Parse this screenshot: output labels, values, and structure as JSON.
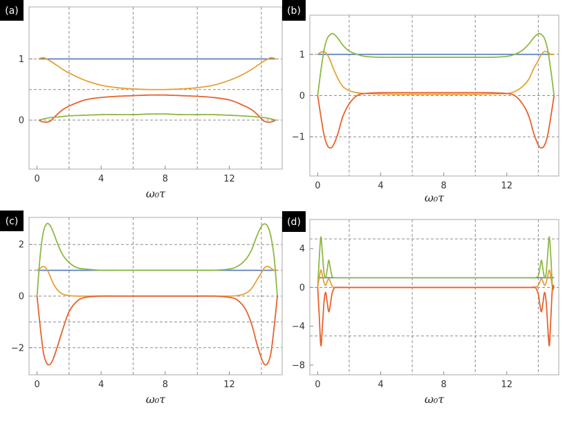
{
  "colors": {
    "blue": "#5b7fc0",
    "orange": "#e6a035",
    "green": "#8db843",
    "red": "#e8612c"
  },
  "chart_data": [
    {
      "type": "line",
      "panel_label": "(a)",
      "xlabel": "ω₀τ",
      "xlim": [
        -0.5,
        15.3
      ],
      "ylim": [
        -0.8,
        1.85
      ],
      "xticks": [
        0,
        4,
        8,
        12
      ],
      "yticks": [
        0,
        1
      ],
      "ytick_labels": [
        "0",
        "1"
      ],
      "grid_x": [
        2,
        6,
        10,
        14
      ],
      "grid_y": [
        0,
        0.5,
        1
      ],
      "x": [
        0.1,
        0.4,
        0.8,
        1.2,
        1.6,
        2,
        3,
        4,
        5,
        6,
        7,
        7.5,
        8,
        9,
        10,
        11,
        12,
        12.8,
        13.4,
        13.8,
        14.2,
        14.6,
        14.9
      ],
      "series": [
        {
          "color": "blue",
          "values": [
            1,
            1,
            1,
            1,
            1,
            1,
            1,
            1,
            1,
            1,
            1,
            1,
            1,
            1,
            1,
            1,
            1,
            1,
            1,
            1,
            1,
            1,
            1
          ]
        },
        {
          "color": "orange",
          "values": [
            1.0,
            1.02,
            0.97,
            0.9,
            0.83,
            0.77,
            0.65,
            0.57,
            0.53,
            0.51,
            0.5,
            0.5,
            0.5,
            0.51,
            0.53,
            0.57,
            0.65,
            0.74,
            0.83,
            0.9,
            0.97,
            1.02,
            1.0
          ]
        },
        {
          "color": "red",
          "values": [
            0.0,
            -0.03,
            -0.02,
            0.08,
            0.17,
            0.23,
            0.33,
            0.37,
            0.39,
            0.4,
            0.41,
            0.41,
            0.41,
            0.4,
            0.39,
            0.37,
            0.33,
            0.25,
            0.17,
            0.08,
            -0.02,
            -0.03,
            0.0
          ]
        },
        {
          "color": "green",
          "values": [
            0.0,
            0.02,
            0.04,
            0.05,
            0.06,
            0.07,
            0.08,
            0.09,
            0.09,
            0.09,
            0.1,
            0.1,
            0.1,
            0.09,
            0.09,
            0.09,
            0.08,
            0.07,
            0.06,
            0.05,
            0.04,
            0.02,
            0.0
          ]
        }
      ]
    },
    {
      "type": "line",
      "panel_label": "(b)",
      "xlabel": "ω₀τ",
      "xlim": [
        -0.5,
        15.3
      ],
      "ylim": [
        -1.95,
        1.95
      ],
      "xticks": [
        0,
        4,
        8,
        12
      ],
      "yticks": [
        -1,
        0,
        1
      ],
      "ytick_labels": [
        "−1",
        "0",
        "1"
      ],
      "grid_x": [
        2,
        6,
        10,
        14
      ],
      "grid_y": [
        -1,
        0,
        1
      ],
      "x": [
        0.0,
        0.2,
        0.4,
        0.6,
        0.8,
        1.0,
        1.3,
        1.6,
        2.0,
        2.5,
        3,
        4,
        5,
        6,
        7,
        7.5,
        8,
        9,
        10,
        11,
        12,
        12.5,
        13.0,
        13.4,
        13.7,
        14.0,
        14.2,
        14.4,
        14.6,
        14.8,
        15.0
      ],
      "series": [
        {
          "color": "blue",
          "values": [
            1,
            1,
            1,
            1,
            1,
            1,
            1,
            1,
            1,
            1,
            1,
            1,
            1,
            1,
            1,
            1,
            1,
            1,
            1,
            1,
            1,
            1,
            1,
            1,
            1,
            1,
            1,
            1,
            1,
            1,
            1
          ]
        },
        {
          "color": "orange",
          "values": [
            1.0,
            1.05,
            1.07,
            1.0,
            0.85,
            0.65,
            0.4,
            0.22,
            0.12,
            0.07,
            0.05,
            0.04,
            0.03,
            0.03,
            0.03,
            0.03,
            0.03,
            0.03,
            0.03,
            0.04,
            0.05,
            0.1,
            0.22,
            0.4,
            0.65,
            0.85,
            1.0,
            1.07,
            1.05,
            1.0,
            1.0
          ]
        },
        {
          "color": "green",
          "values": [
            0.0,
            0.6,
            1.1,
            1.38,
            1.48,
            1.5,
            1.38,
            1.22,
            1.08,
            1.0,
            0.95,
            0.93,
            0.93,
            0.93,
            0.93,
            0.93,
            0.93,
            0.93,
            0.93,
            0.93,
            0.95,
            1.0,
            1.1,
            1.25,
            1.4,
            1.5,
            1.48,
            1.38,
            1.1,
            0.6,
            0.0
          ]
        },
        {
          "color": "red",
          "values": [
            0.0,
            -0.5,
            -0.95,
            -1.2,
            -1.27,
            -1.2,
            -0.9,
            -0.5,
            -0.2,
            0.0,
            0.05,
            0.07,
            0.07,
            0.07,
            0.07,
            0.07,
            0.07,
            0.07,
            0.07,
            0.07,
            0.05,
            0.0,
            -0.2,
            -0.5,
            -0.9,
            -1.2,
            -1.27,
            -1.2,
            -0.95,
            -0.5,
            0.0
          ]
        }
      ]
    },
    {
      "type": "line",
      "panel_label": "(c)",
      "xlabel": "ω₀τ",
      "xlim": [
        -0.5,
        15.3
      ],
      "ylim": [
        -3.05,
        3.05
      ],
      "xticks": [
        0,
        4,
        8,
        12
      ],
      "yticks": [
        -2,
        0,
        2
      ],
      "ytick_labels": [
        "−2",
        "0",
        "2"
      ],
      "grid_x": [
        2,
        6,
        10,
        14
      ],
      "grid_y": [
        -2,
        -1,
        0,
        1,
        2
      ],
      "x": [
        0.0,
        0.2,
        0.4,
        0.6,
        0.8,
        1.0,
        1.3,
        1.6,
        2.0,
        2.5,
        3,
        4,
        5,
        6,
        7,
        7.5,
        8,
        9,
        10,
        11,
        12,
        12.5,
        13.0,
        13.4,
        13.7,
        14.0,
        14.2,
        14.4,
        14.6,
        14.8,
        15.0
      ],
      "series": [
        {
          "color": "blue",
          "values": [
            1,
            1,
            1,
            1,
            1,
            1,
            1,
            1,
            1,
            1,
            1,
            1,
            1,
            1,
            1,
            1,
            1,
            1,
            1,
            1,
            1,
            1,
            1,
            1,
            1,
            1,
            1,
            1,
            1,
            1,
            1
          ]
        },
        {
          "color": "orange",
          "values": [
            1.0,
            1.08,
            1.15,
            1.05,
            0.8,
            0.5,
            0.22,
            0.08,
            0.02,
            0.0,
            0.0,
            0.0,
            0.0,
            0.0,
            0.0,
            0.0,
            0.0,
            0.0,
            0.0,
            0.0,
            0.0,
            0.02,
            0.1,
            0.3,
            0.6,
            0.9,
            1.1,
            1.15,
            1.08,
            1.0,
            1.0
          ]
        },
        {
          "color": "green",
          "values": [
            0.0,
            1.6,
            2.5,
            2.8,
            2.75,
            2.5,
            2.0,
            1.6,
            1.3,
            1.1,
            1.05,
            1.0,
            1.0,
            1.0,
            1.0,
            1.0,
            1.0,
            1.0,
            1.0,
            1.0,
            1.05,
            1.15,
            1.4,
            1.8,
            2.3,
            2.7,
            2.8,
            2.7,
            2.3,
            1.5,
            0.0
          ]
        },
        {
          "color": "red",
          "values": [
            0.0,
            -1.2,
            -2.2,
            -2.6,
            -2.65,
            -2.45,
            -1.9,
            -1.3,
            -0.6,
            -0.2,
            -0.05,
            0.0,
            0.0,
            0.0,
            0.0,
            0.0,
            0.0,
            0.0,
            0.0,
            0.0,
            -0.05,
            -0.15,
            -0.5,
            -1.1,
            -1.8,
            -2.4,
            -2.65,
            -2.6,
            -2.2,
            -1.2,
            0.0
          ]
        }
      ]
    },
    {
      "type": "line",
      "panel_label": "(d)",
      "xlabel": "ω₀τ",
      "xlim": [
        -0.5,
        15.3
      ],
      "ylim": [
        -9.0,
        7.0
      ],
      "xticks": [
        0,
        4,
        8,
        12
      ],
      "yticks": [
        -8,
        -4,
        0,
        4
      ],
      "ytick_labels": [
        "−8",
        "−4",
        "0",
        "4"
      ],
      "grid_x": [
        2,
        6,
        10,
        14
      ],
      "grid_y": [
        -5,
        0,
        5
      ],
      "x": [
        0.0,
        0.1,
        0.2,
        0.3,
        0.4,
        0.5,
        0.6,
        0.7,
        0.8,
        0.9,
        1.0,
        1.1,
        1.3,
        1.6,
        2,
        4,
        8,
        12,
        13.5,
        13.8,
        14.0,
        14.1,
        14.2,
        14.3,
        14.4,
        14.5,
        14.6,
        14.7,
        14.8,
        14.9,
        15.0
      ],
      "series": [
        {
          "color": "blue",
          "values": [
            1,
            1,
            1,
            1,
            1,
            1,
            1,
            1,
            1,
            1,
            1,
            1,
            1,
            1,
            1,
            1,
            1,
            1,
            1,
            1,
            1,
            1,
            1,
            1,
            1,
            1,
            1,
            1,
            1,
            1,
            1
          ]
        },
        {
          "color": "green",
          "values": [
            0.0,
            3.0,
            5.2,
            3.5,
            1.5,
            1.0,
            1.8,
            2.8,
            2.0,
            1.2,
            1.0,
            1.0,
            1.0,
            1.0,
            1.0,
            1.0,
            1.0,
            1.0,
            1.0,
            1.0,
            1.2,
            2.0,
            2.8,
            1.8,
            1.0,
            1.5,
            3.5,
            5.2,
            3.0,
            0.0,
            0.0
          ]
        },
        {
          "color": "orange",
          "values": [
            0.0,
            1.0,
            1.8,
            1.2,
            0.5,
            0.2,
            0.6,
            0.9,
            0.6,
            0.2,
            0.0,
            0.0,
            0.0,
            0.0,
            0.0,
            0.0,
            0.0,
            0.0,
            0.0,
            0.0,
            0.2,
            0.6,
            0.9,
            0.6,
            0.2,
            0.5,
            1.2,
            1.8,
            1.0,
            0.0,
            0.0
          ]
        },
        {
          "color": "red",
          "values": [
            0.0,
            -3.0,
            -6.0,
            -4.0,
            -1.5,
            -0.5,
            -1.5,
            -2.5,
            -1.8,
            -0.7,
            -0.2,
            0.0,
            0.0,
            0.0,
            0.0,
            0.0,
            0.0,
            0.0,
            0.0,
            0.0,
            -0.7,
            -1.8,
            -2.5,
            -1.5,
            -0.5,
            -1.5,
            -4.0,
            -6.0,
            -3.0,
            0.0,
            0.0
          ]
        }
      ]
    }
  ]
}
